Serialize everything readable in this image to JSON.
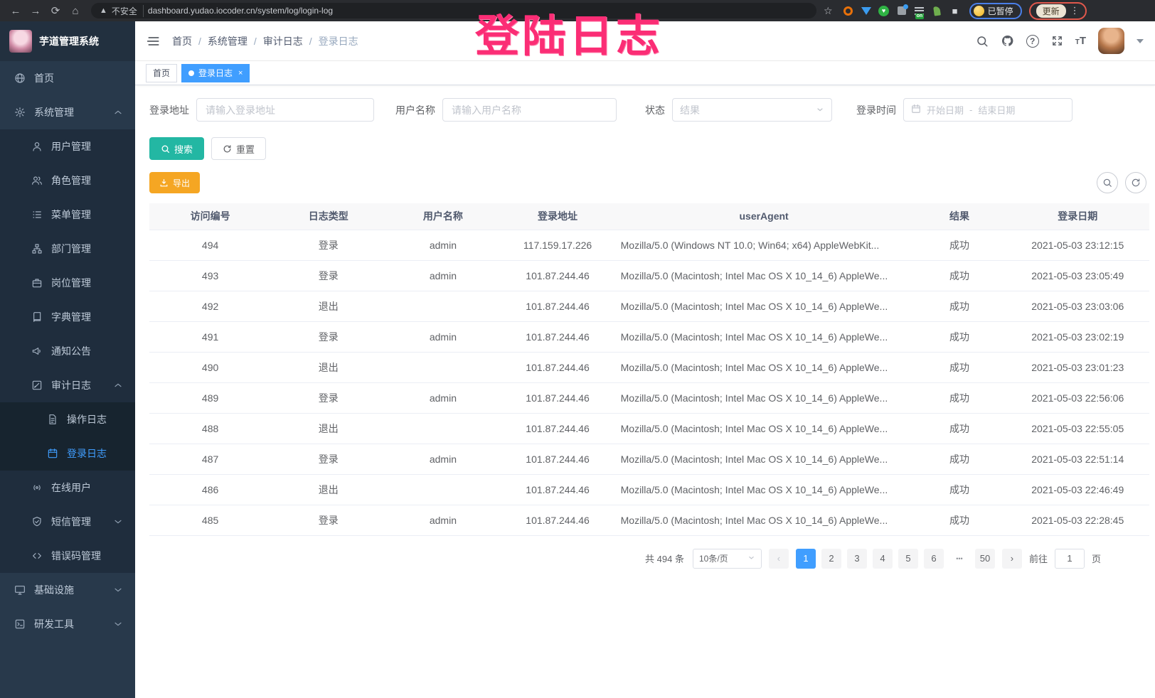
{
  "browser": {
    "security_label": "不安全",
    "url": "dashboard.yudao.iocoder.cn/system/log/login-log",
    "paused_label": "已暂停",
    "update_label": "更新"
  },
  "annotation": {
    "text": "登陆日志",
    "color": "#fb2d75"
  },
  "app": {
    "title": "芋道管理系统"
  },
  "colors": {
    "accent": "#409eff",
    "search_button": "#23b7a3",
    "export_button": "#f5a623",
    "sidebar_bg": "#28394b"
  },
  "sidebar": {
    "items": [
      {
        "label": "首页",
        "icon": "dashboard-icon"
      },
      {
        "label": "系统管理",
        "icon": "gear-icon",
        "expanded": true,
        "children": [
          {
            "label": "用户管理",
            "icon": "user-icon"
          },
          {
            "label": "角色管理",
            "icon": "role-icon"
          },
          {
            "label": "菜单管理",
            "icon": "menu-icon"
          },
          {
            "label": "部门管理",
            "icon": "dept-icon"
          },
          {
            "label": "岗位管理",
            "icon": "post-icon"
          },
          {
            "label": "字典管理",
            "icon": "dict-icon"
          },
          {
            "label": "通知公告",
            "icon": "notice-icon"
          },
          {
            "label": "审计日志",
            "icon": "audit-icon",
            "expanded": true,
            "children": [
              {
                "label": "操作日志",
                "icon": "operation-log-icon"
              },
              {
                "label": "登录日志",
                "icon": "login-log-icon",
                "active": true
              }
            ]
          },
          {
            "label": "在线用户",
            "icon": "online-user-icon"
          },
          {
            "label": "短信管理",
            "icon": "sms-icon",
            "collapsed": true
          },
          {
            "label": "错误码管理",
            "icon": "error-code-icon"
          }
        ]
      },
      {
        "label": "基础设施",
        "icon": "infra-icon",
        "collapsed": true
      },
      {
        "label": "研发工具",
        "icon": "devtool-icon",
        "collapsed": true
      }
    ]
  },
  "header": {
    "breadcrumb": [
      "首页",
      "系统管理",
      "审计日志",
      "登录日志"
    ]
  },
  "tabs": [
    {
      "label": "首页",
      "active": false,
      "closable": false
    },
    {
      "label": "登录日志",
      "active": true,
      "closable": true
    }
  ],
  "filters": {
    "login_address": {
      "label": "登录地址",
      "placeholder": "请输入登录地址"
    },
    "username": {
      "label": "用户名称",
      "placeholder": "请输入用户名称"
    },
    "status": {
      "label": "状态",
      "placeholder": "结果"
    },
    "login_time": {
      "label": "登录时间",
      "start_placeholder": "开始日期",
      "separator": "-",
      "end_placeholder": "结束日期"
    }
  },
  "toolbar": {
    "search_label": "搜索",
    "reset_label": "重置",
    "export_label": "导出"
  },
  "table": {
    "columns": [
      "访问编号",
      "日志类型",
      "用户名称",
      "登录地址",
      "userAgent",
      "结果",
      "登录日期"
    ],
    "rows": [
      [
        "494",
        "登录",
        "admin",
        "117.159.17.226",
        "Mozilla/5.0 (Windows NT 10.0; Win64; x64) AppleWebKit...",
        "成功",
        "2021-05-03 23:12:15"
      ],
      [
        "493",
        "登录",
        "admin",
        "101.87.244.46",
        "Mozilla/5.0 (Macintosh; Intel Mac OS X 10_14_6) AppleWe...",
        "成功",
        "2021-05-03 23:05:49"
      ],
      [
        "492",
        "退出",
        "",
        "101.87.244.46",
        "Mozilla/5.0 (Macintosh; Intel Mac OS X 10_14_6) AppleWe...",
        "成功",
        "2021-05-03 23:03:06"
      ],
      [
        "491",
        "登录",
        "admin",
        "101.87.244.46",
        "Mozilla/5.0 (Macintosh; Intel Mac OS X 10_14_6) AppleWe...",
        "成功",
        "2021-05-03 23:02:19"
      ],
      [
        "490",
        "退出",
        "",
        "101.87.244.46",
        "Mozilla/5.0 (Macintosh; Intel Mac OS X 10_14_6) AppleWe...",
        "成功",
        "2021-05-03 23:01:23"
      ],
      [
        "489",
        "登录",
        "admin",
        "101.87.244.46",
        "Mozilla/5.0 (Macintosh; Intel Mac OS X 10_14_6) AppleWe...",
        "成功",
        "2021-05-03 22:56:06"
      ],
      [
        "488",
        "退出",
        "",
        "101.87.244.46",
        "Mozilla/5.0 (Macintosh; Intel Mac OS X 10_14_6) AppleWe...",
        "成功",
        "2021-05-03 22:55:05"
      ],
      [
        "487",
        "登录",
        "admin",
        "101.87.244.46",
        "Mozilla/5.0 (Macintosh; Intel Mac OS X 10_14_6) AppleWe...",
        "成功",
        "2021-05-03 22:51:14"
      ],
      [
        "486",
        "退出",
        "",
        "101.87.244.46",
        "Mozilla/5.0 (Macintosh; Intel Mac OS X 10_14_6) AppleWe...",
        "成功",
        "2021-05-03 22:46:49"
      ],
      [
        "485",
        "登录",
        "admin",
        "101.87.244.46",
        "Mozilla/5.0 (Macintosh; Intel Mac OS X 10_14_6) AppleWe...",
        "成功",
        "2021-05-03 22:28:45"
      ]
    ]
  },
  "pagination": {
    "total": "共 494 条",
    "page_size": "10条/页",
    "pages": [
      "1",
      "2",
      "3",
      "4",
      "5",
      "6",
      "...",
      "50"
    ],
    "active": "1",
    "goto_label": "前往",
    "goto_value": "1",
    "goto_suffix": "页"
  }
}
